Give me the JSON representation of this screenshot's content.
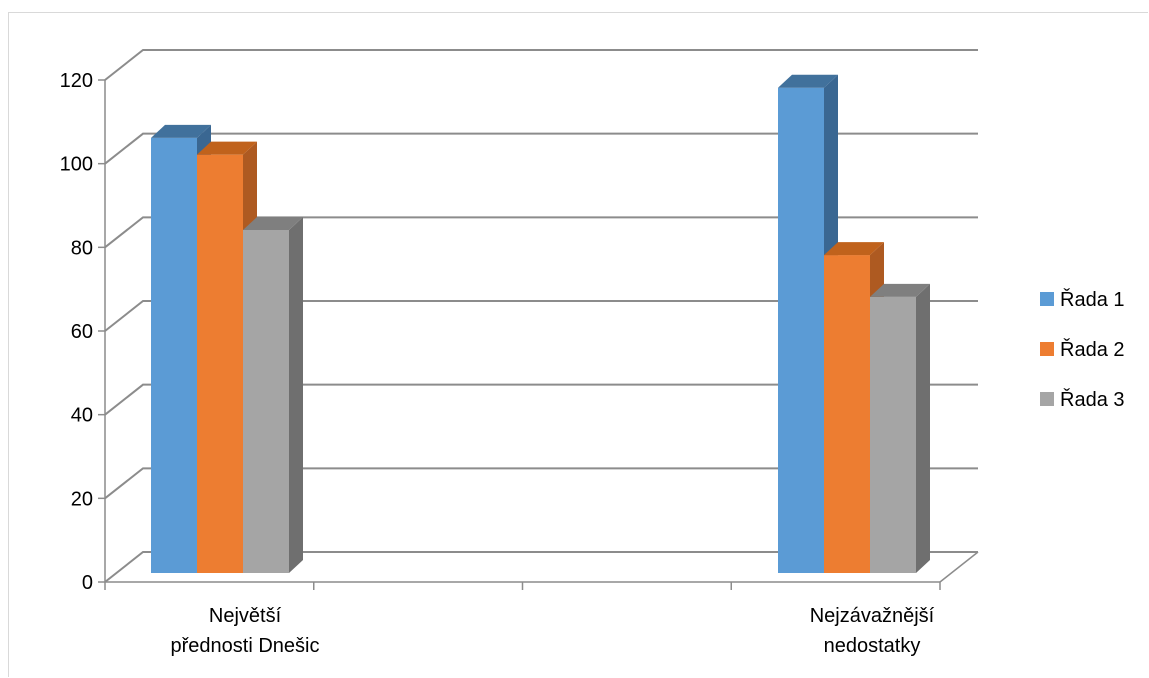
{
  "chart_data": {
    "type": "bar",
    "style": "3d-clustered-column",
    "categories": [
      "Největší přednosti Dnešic",
      "Nejzávažnější nedostatky"
    ],
    "category_lines": [
      [
        "Největší",
        "přednosti Dnešic"
      ],
      [
        "Nejzávažnější",
        "nedostatky"
      ]
    ],
    "series": [
      {
        "name": "Řada 1",
        "values": [
          104,
          116
        ],
        "color": "#5b9bd5",
        "side": "#3a6792",
        "top": "#41719c"
      },
      {
        "name": "Řada 2",
        "values": [
          100,
          76
        ],
        "color": "#ed7d31",
        "side": "#ae5a21",
        "top": "#c0621c"
      },
      {
        "name": "Řada 3",
        "values": [
          82,
          66
        ],
        "color": "#a5a5a5",
        "side": "#6f6f6f",
        "top": "#7f7f7f"
      }
    ],
    "ylim": [
      0,
      120
    ],
    "yticks": [
      0,
      20,
      40,
      60,
      80,
      100,
      120
    ],
    "grid": true,
    "legend": "right",
    "title": "",
    "xlabel": "",
    "ylabel": ""
  }
}
